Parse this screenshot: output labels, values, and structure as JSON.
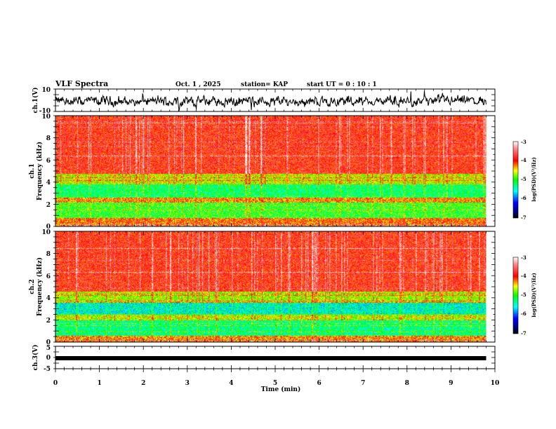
{
  "header": {
    "title": "VLF Spectra",
    "date": "Oct. 1 , 2025",
    "station": "station= KAP",
    "start_ut": "start UT =  0 : 10 : 1"
  },
  "chart_data": [
    {
      "type": "line",
      "name": "ch1-waveform",
      "ylabel": "ch.1(V)",
      "ylim": [
        -10,
        10
      ],
      "yticks": [
        "10",
        "-10"
      ],
      "xlim": [
        0,
        10
      ],
      "description_values_estimate": "noisy signal fluctuating roughly between -5 and 3 V"
    },
    {
      "type": "heatmap",
      "name": "ch1-spectrogram",
      "ylabel": "ch.1",
      "ylabel2": "Frequency (kHz)",
      "ylim": [
        0,
        10
      ],
      "yticks": [
        "0",
        "2",
        "4",
        "6",
        "8",
        "10"
      ],
      "xlim": [
        0,
        10
      ],
      "data_extent_min": 9.8,
      "bands": [
        {
          "from_khz": 0,
          "to_khz": 0.8,
          "level": -4.2
        },
        {
          "from_khz": 0.8,
          "to_khz": 2.2,
          "level": -5.0
        },
        {
          "from_khz": 2.2,
          "to_khz": 2.6,
          "level": -4.3
        },
        {
          "from_khz": 2.6,
          "to_khz": 3.8,
          "level": -5.2
        },
        {
          "from_khz": 3.8,
          "to_khz": 4.8,
          "level": -4.6
        },
        {
          "from_khz": 4.8,
          "to_khz": 10,
          "level": -3.9
        }
      ],
      "colorbar": {
        "label": "log(PSD)(V²/Hz)",
        "min": -7,
        "max": -3,
        "ticks": [
          "-3",
          "-4",
          "-5",
          "-6",
          "-7"
        ]
      }
    },
    {
      "type": "heatmap",
      "name": "ch2-spectrogram",
      "ylabel": "ch.2",
      "ylabel2": "Frequency (kHz)",
      "ylim": [
        0,
        10
      ],
      "yticks": [
        "0",
        "2",
        "4",
        "6",
        "8",
        "10"
      ],
      "xlim": [
        0,
        10
      ],
      "data_extent_min": 9.8,
      "bands": [
        {
          "from_khz": 0,
          "to_khz": 0.6,
          "level": -4.3
        },
        {
          "from_khz": 0.6,
          "to_khz": 2.0,
          "level": -5.3
        },
        {
          "from_khz": 2.0,
          "to_khz": 2.5,
          "level": -4.6
        },
        {
          "from_khz": 2.5,
          "to_khz": 3.6,
          "level": -5.5
        },
        {
          "from_khz": 3.6,
          "to_khz": 4.6,
          "level": -4.7
        },
        {
          "from_khz": 4.6,
          "to_khz": 10,
          "level": -3.9
        }
      ],
      "colorbar": {
        "label": "log(PSD)(V²/Hz)",
        "min": -7,
        "max": -3,
        "ticks": [
          "-3",
          "-4",
          "-5",
          "-6",
          "-7"
        ]
      }
    },
    {
      "type": "line",
      "name": "ch3-waveform",
      "ylabel": "ch.3(V)",
      "ylim": [
        -5,
        5
      ],
      "yticks": [
        "5",
        "0",
        "-5"
      ],
      "xlim": [
        0,
        10
      ],
      "constant_value": -1.3
    }
  ],
  "xaxis": {
    "label": "Time (min)",
    "ticks": [
      "0",
      "1",
      "2",
      "3",
      "4",
      "5",
      "6",
      "7",
      "8",
      "9",
      "10"
    ]
  },
  "colors": {
    "axis": "#000000",
    "background": "#ffffff"
  }
}
